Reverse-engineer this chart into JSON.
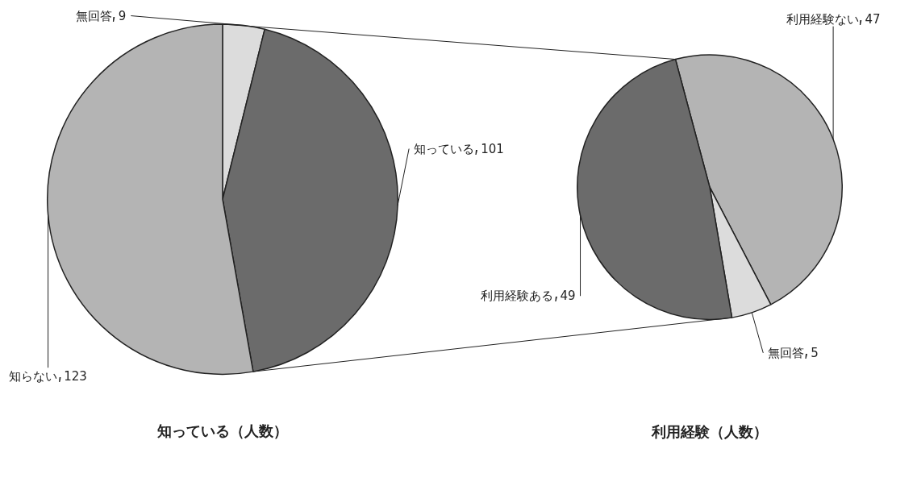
{
  "chart_data": [
    {
      "type": "pie",
      "title": "知っている（人数）",
      "categories": [
        "無回答",
        "知っている",
        "知らない"
      ],
      "values": [
        9,
        101,
        123
      ],
      "colors": [
        "#dcdcdc",
        "#6b6b6b",
        "#b4b4b4"
      ],
      "data_labels": true
    },
    {
      "type": "pie",
      "title": "利用経験（人数）",
      "categories": [
        "利用経験ない",
        "無回答",
        "利用経験ある"
      ],
      "values": [
        47,
        5,
        49
      ],
      "colors": [
        "#b4b4b4",
        "#dcdcdc",
        "#6b6b6b"
      ],
      "data_labels": true
    }
  ]
}
